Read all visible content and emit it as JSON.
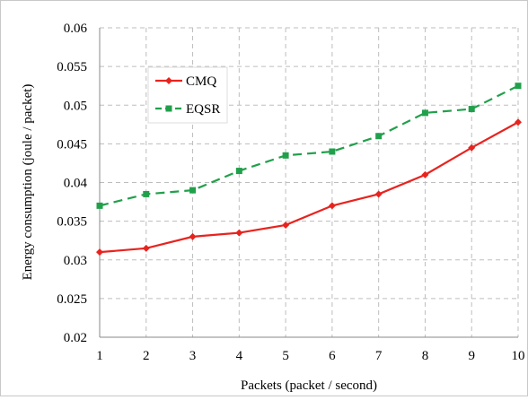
{
  "chart_data": {
    "type": "line",
    "title": "",
    "xlabel": "Packets (packet / second)",
    "ylabel": "Energy consumption (joule / packet)",
    "x": [
      1,
      2,
      3,
      4,
      5,
      6,
      7,
      8,
      9,
      10
    ],
    "x_tick_labels": [
      "1",
      "2",
      "3",
      "4",
      "5",
      "6",
      "7",
      "8",
      "9",
      "10"
    ],
    "xlim": [
      1,
      10
    ],
    "ylim": [
      0.02,
      0.06
    ],
    "y_tick_labels": [
      "0.02",
      "0.025",
      "0.03",
      "0.035",
      "0.04",
      "0.045",
      "0.05",
      "0.055",
      "0.06"
    ],
    "y_ticks": [
      0.02,
      0.025,
      0.03,
      0.035,
      0.04,
      0.045,
      0.05,
      0.055,
      0.06
    ],
    "grid": true,
    "legend_position": "top-left",
    "series": [
      {
        "name": "CMQ",
        "color": "#e8231e",
        "marker": "diamond",
        "line_style": "solid",
        "values": [
          0.031,
          0.0315,
          0.033,
          0.0335,
          0.0345,
          0.037,
          0.0385,
          0.041,
          0.0445,
          0.0478
        ]
      },
      {
        "name": "EQSR",
        "color": "#21a04b",
        "marker": "square",
        "line_style": "dashed",
        "values": [
          0.037,
          0.0385,
          0.039,
          0.0415,
          0.0435,
          0.044,
          0.046,
          0.049,
          0.0495,
          0.0525
        ]
      }
    ]
  }
}
